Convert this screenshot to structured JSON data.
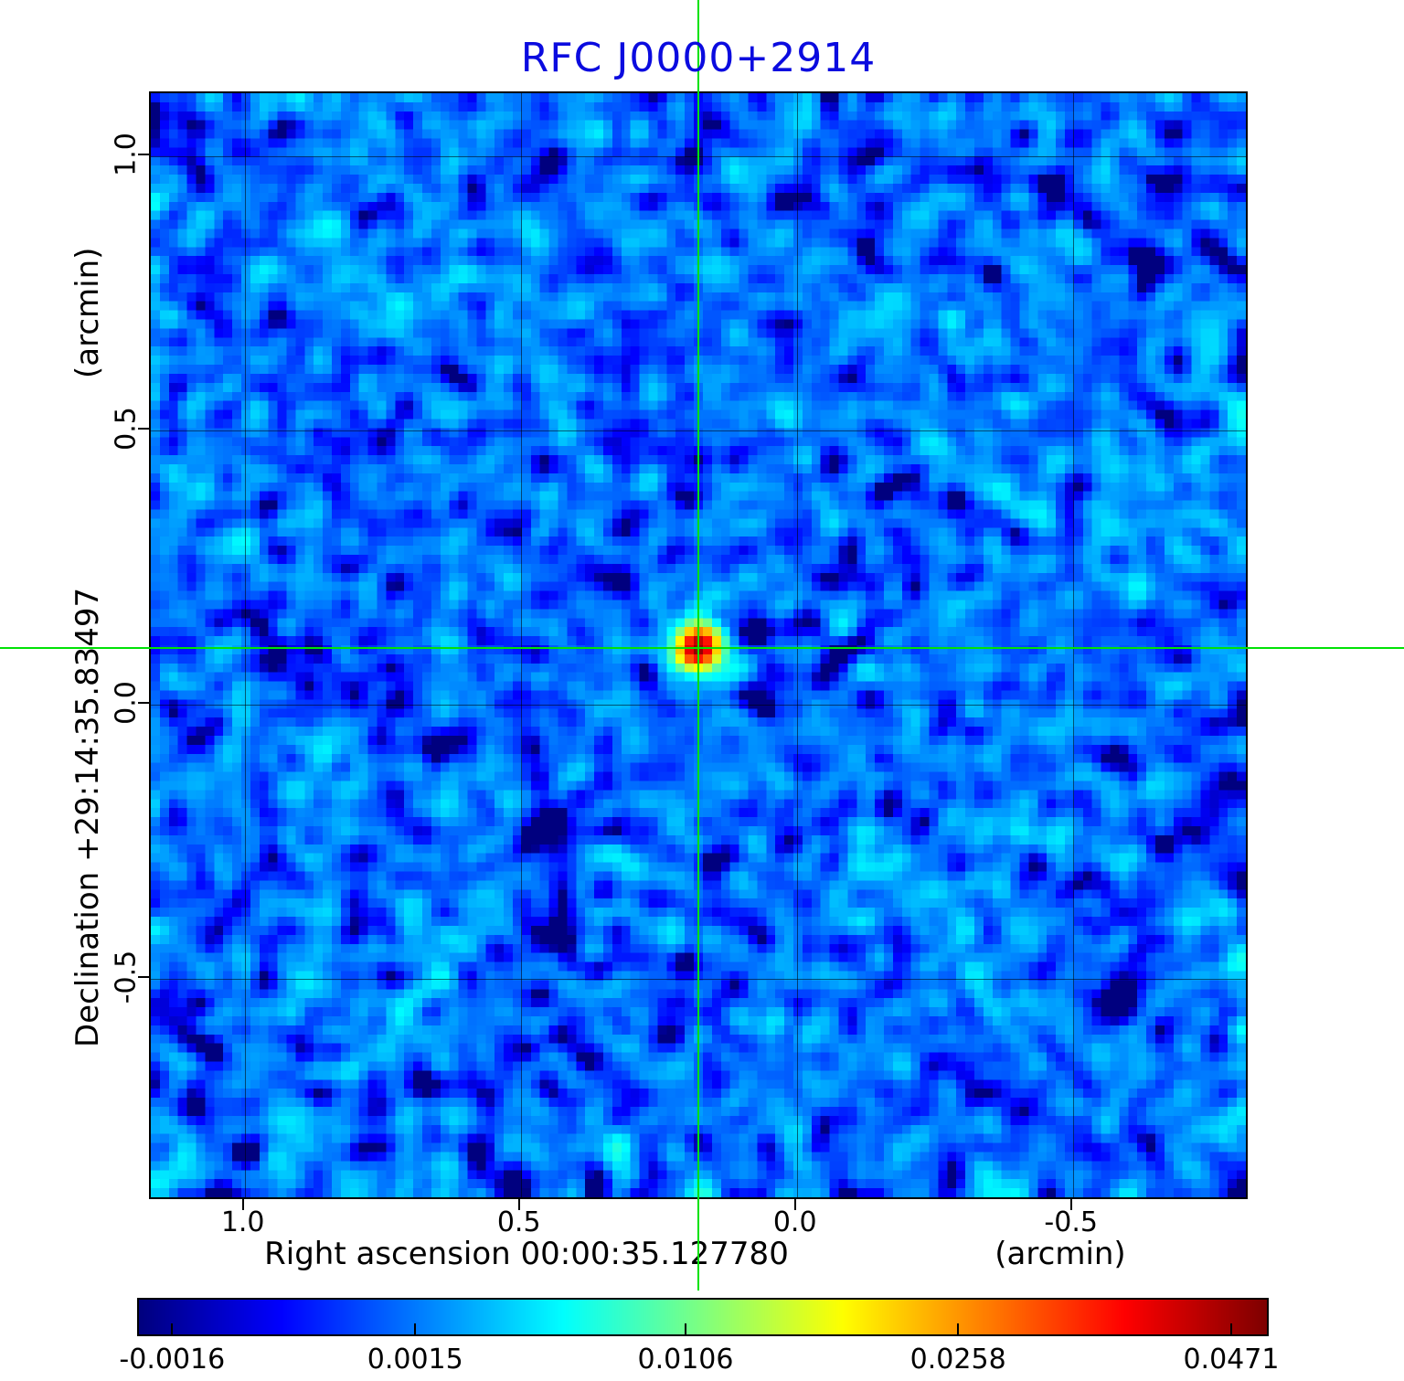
{
  "title": "RFC J0000+2914",
  "colors": {
    "title": "#0b0bdf",
    "crosshair": "#00e205",
    "frame": "#000000",
    "background": "#ffffff"
  },
  "axes": {
    "y_unit": "(arcmin)",
    "y_label": "Declination  +29:14:35.83497",
    "x_label": "Right ascension  00:00:35.127780",
    "x_unit": "(arcmin)",
    "x_ticks": [
      "1.0",
      "0.5",
      "0.0",
      "-0.5"
    ],
    "y_ticks": [
      "1.0",
      "0.5",
      "0.0",
      "-0.5"
    ]
  },
  "colorbar": {
    "ticks": [
      "-0.0016",
      "0.0015",
      "0.0106",
      "0.0258",
      "0.0471"
    ]
  },
  "chart_data": {
    "type": "heatmap",
    "title": "RFC J0000+2914",
    "xlabel": "Right ascension 00:00:35.127780 (arcmin)",
    "ylabel": "Declination +29:14:35.83497 (arcmin)",
    "x_range_arcmin": [
      1.17,
      -0.82
    ],
    "y_range_arcmin": [
      1.115,
      -0.905
    ],
    "x_tick_values": [
      1.0,
      0.5,
      0.0,
      -0.5
    ],
    "y_tick_values": [
      1.0,
      0.5,
      0.0,
      -0.5
    ],
    "colormap": "jet",
    "stretch": "sqrt",
    "flux_min_jy": -0.00165,
    "flux_max_jy": 0.0505,
    "colorbar_tick_values": [
      -0.0016,
      0.0015,
      0.0106,
      0.0258,
      0.0471
    ],
    "noise_mean_jy": 0.0012,
    "noise_sigma_jy": 0.0014,
    "source": {
      "ra_offset_arcmin": 0.175,
      "dec_offset_arcmin": 0.1,
      "peak_jy": 0.0471,
      "sigma_arcmin": 0.026
    },
    "grid": true,
    "seed": 20240042
  }
}
